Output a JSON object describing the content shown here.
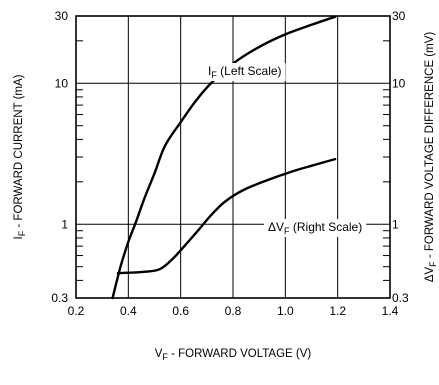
{
  "chart_data": {
    "type": "line",
    "xlabel": {
      "main": "V",
      "sub": "F",
      "rest": " - FORWARD VOLTAGE (V)"
    },
    "ylabel_left": {
      "main": "I",
      "sub": "F",
      "rest": " - FORWARD CURRENT (mA)"
    },
    "ylabel_right": {
      "main": "ΔV",
      "sub": "F",
      "rest": " - FORWARD VOLTAGE DIFFERENCE (mV)"
    },
    "xlim": [
      0.2,
      1.4
    ],
    "ylim": [
      0.3,
      30
    ],
    "y_scale": "log",
    "grid": true,
    "x_ticks": [
      "0.2",
      "0.4",
      "0.6",
      "0.8",
      "1.0",
      "1.2",
      "1.4"
    ],
    "y_ticks_left": [
      {
        "value": 0.3,
        "label": "0.3"
      },
      {
        "value": 1,
        "label": "1"
      },
      {
        "value": 10,
        "label": "10"
      },
      {
        "value": 30,
        "label": "30"
      }
    ],
    "y_ticks_right": [
      {
        "value": 0.3,
        "label": "0.3"
      },
      {
        "value": 1,
        "label": "1"
      },
      {
        "value": 10,
        "label": "10"
      },
      {
        "value": 30,
        "label": "30"
      }
    ],
    "series": [
      {
        "name": {
          "main": "I",
          "sub": "F",
          "rest": " (Left Scale)"
        },
        "axis": "left",
        "x": [
          0.34,
          0.37,
          0.4,
          0.43,
          0.46,
          0.5,
          0.54,
          0.6,
          0.66,
          0.72,
          0.8,
          0.9,
          1.0,
          1.1,
          1.19
        ],
        "y": [
          0.3,
          0.5,
          0.75,
          1.05,
          1.5,
          2.3,
          3.6,
          5.3,
          7.6,
          10.2,
          13.8,
          18.1,
          22.2,
          26.0,
          29.6
        ]
      },
      {
        "name": {
          "main": "ΔV",
          "sub": "F",
          "rest": " (Right Scale)"
        },
        "axis": "right",
        "x": [
          0.36,
          0.46,
          0.52,
          0.57,
          0.62,
          0.67,
          0.72,
          0.77,
          0.84,
          0.93,
          1.02,
          1.1,
          1.19
        ],
        "y": [
          0.45,
          0.46,
          0.48,
          0.57,
          0.72,
          0.92,
          1.18,
          1.45,
          1.75,
          2.05,
          2.35,
          2.6,
          2.9
        ]
      }
    ]
  }
}
